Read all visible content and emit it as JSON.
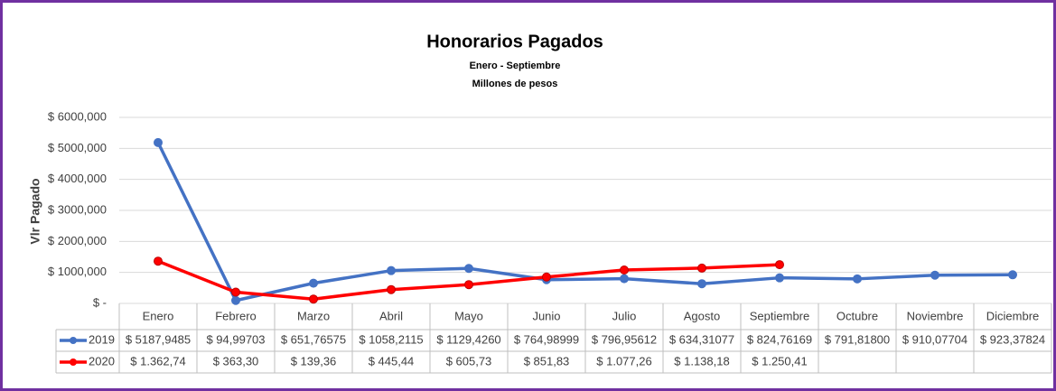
{
  "chart_data": {
    "type": "line",
    "title": "Honorarios Pagados",
    "subtitle": [
      "Enero - Septiembre",
      "Millones de pesos"
    ],
    "y_label": "Vlr Pagado",
    "categories": [
      "Enero",
      "Febrero",
      "Marzo",
      "Abril",
      "Mayo",
      "Junio",
      "Julio",
      "Agosto",
      "Septiembre",
      "Octubre",
      "Noviembre",
      "Diciembre"
    ],
    "series": [
      {
        "name": "2019",
        "color": "#4472c4",
        "values": [
          5187.9485,
          94.99703,
          651.76575,
          1058.2115,
          1129.426,
          764.98999,
          796.95612,
          634.31077,
          824.76169,
          791.818,
          910.07704,
          923.37824
        ],
        "value_labels": [
          "$ 5187,9485",
          "$ 94,99703",
          "$ 651,76575",
          "$ 1058,2115",
          "$ 1129,4260",
          "$ 764,98999",
          "$ 796,95612",
          "$ 634,31077",
          "$ 824,76169",
          "$ 791,81800",
          "$ 910,07704",
          "$ 923,37824"
        ]
      },
      {
        "name": "2020",
        "color": "#ff0000",
        "values": [
          1362.74,
          363.3,
          139.36,
          445.44,
          605.73,
          851.83,
          1077.26,
          1138.18,
          1250.41,
          null,
          null,
          null
        ],
        "value_labels": [
          "$ 1.362,74",
          "$ 363,30",
          "$ 139,36",
          "$ 445,44",
          "$ 605,73",
          "$ 851,83",
          "$ 1.077,26",
          "$ 1.138,18",
          "$ 1.250,41",
          null,
          null,
          null
        ]
      }
    ],
    "ylim": [
      0,
      6000
    ],
    "yticks": [
      {
        "value": 0,
        "label": "$ -"
      },
      {
        "value": 1000,
        "label": "$ 1000,000"
      },
      {
        "value": 2000,
        "label": "$ 2000,000"
      },
      {
        "value": 3000,
        "label": "$ 3000,000"
      },
      {
        "value": 4000,
        "label": "$ 4000,000"
      },
      {
        "value": 5000,
        "label": "$ 5000,000"
      },
      {
        "value": 6000,
        "label": "$ 6000,000"
      }
    ],
    "grid": true
  }
}
